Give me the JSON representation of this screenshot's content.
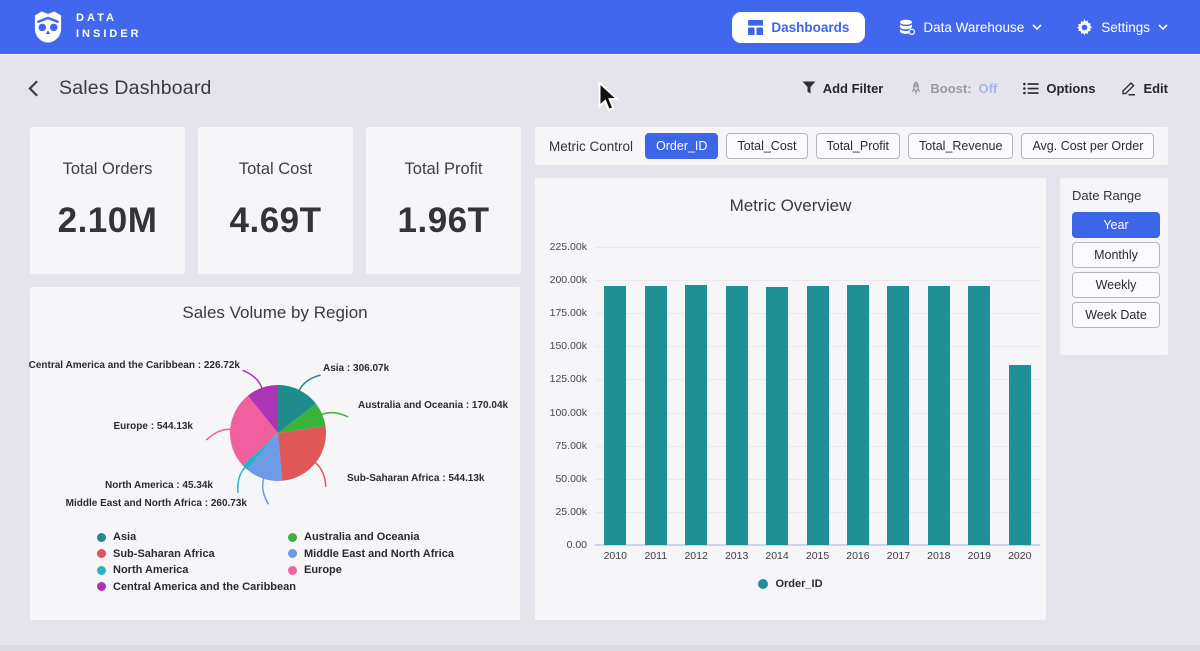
{
  "navbar": {
    "logo_line1": "DATA",
    "logo_line2": "INSIDER",
    "dashboards_label": "Dashboards",
    "data_warehouse_label": "Data Warehouse",
    "settings_label": "Settings"
  },
  "subheader": {
    "title": "Sales Dashboard",
    "add_filter": "Add Filter",
    "boost_label": "Boost:",
    "boost_value": "Off",
    "options": "Options",
    "edit": "Edit"
  },
  "kpis": [
    {
      "label": "Total Orders",
      "value": "2.10M"
    },
    {
      "label": "Total Cost",
      "value": "4.69T"
    },
    {
      "label": "Total Profit",
      "value": "1.96T"
    }
  ],
  "metric_control": {
    "label": "Metric Control",
    "options": [
      "Order_ID",
      "Total_Cost",
      "Total_Profit",
      "Total_Revenue",
      "Avg. Cost per Order"
    ],
    "active_index": 0
  },
  "date_range": {
    "label": "Date Range",
    "options": [
      "Year",
      "Monthly",
      "Weekly",
      "Week Date"
    ],
    "active_index": 0
  },
  "colors": {
    "navbar": "#4267ef",
    "accent": "#3d65e7",
    "bar_teal": "#1e9096",
    "boost_off": "#a9b4ef",
    "page_bg": "#e5e4ec",
    "panel_bg": "#f6f5f7"
  },
  "chart_data": [
    {
      "type": "pie",
      "title": "Sales Volume by Region",
      "unit": "k",
      "slices": [
        {
          "label": "Asia",
          "value": 306.07,
          "display": "Asia : 306.07k",
          "color": "#1f8b8d"
        },
        {
          "label": "Australia and Oceania",
          "value": 170.04,
          "display": "Australia and Oceania : 170.04k",
          "color": "#3bb33b"
        },
        {
          "label": "Sub-Saharan Africa",
          "value": 544.13,
          "display": "Sub-Saharan Africa : 544.13k",
          "color": "#df5757"
        },
        {
          "label": "Middle East and North Africa",
          "value": 260.73,
          "display": "Middle East and North Africa : 260.73k",
          "color": "#6d9be6"
        },
        {
          "label": "North America",
          "value": 45.34,
          "display": "North America : 45.34k",
          "color": "#29b2c8"
        },
        {
          "label": "Europe",
          "value": 544.13,
          "display": "Europe : 544.13k",
          "color": "#f25f9f"
        },
        {
          "label": "Central America and the Caribbean",
          "value": 226.72,
          "display": "Central America and the Caribbean : 226.72k",
          "color": "#ab35b5"
        }
      ],
      "legend_columns": [
        [
          0,
          2,
          4,
          6
        ],
        [
          1,
          3,
          5
        ]
      ],
      "legend_position": "bottom"
    },
    {
      "type": "bar",
      "title": "Metric Overview",
      "series_name": "Order_ID",
      "color": "#1e9096",
      "categories": [
        "2010",
        "2011",
        "2012",
        "2013",
        "2014",
        "2015",
        "2016",
        "2017",
        "2018",
        "2019",
        "2020"
      ],
      "values": [
        195.4,
        195.3,
        196.3,
        195.4,
        195.2,
        195.3,
        196.3,
        195.5,
        195.4,
        195.4,
        135.9
      ],
      "unit": "k",
      "ylim": [
        0,
        225
      ],
      "y_ticks": [
        "225.00k",
        "200.00k",
        "175.00k",
        "150.00k",
        "125.00k",
        "100.00k",
        "75.00k",
        "50.00k",
        "25.00k",
        "0.00"
      ],
      "grid": true,
      "legend_position": "bottom"
    }
  ]
}
